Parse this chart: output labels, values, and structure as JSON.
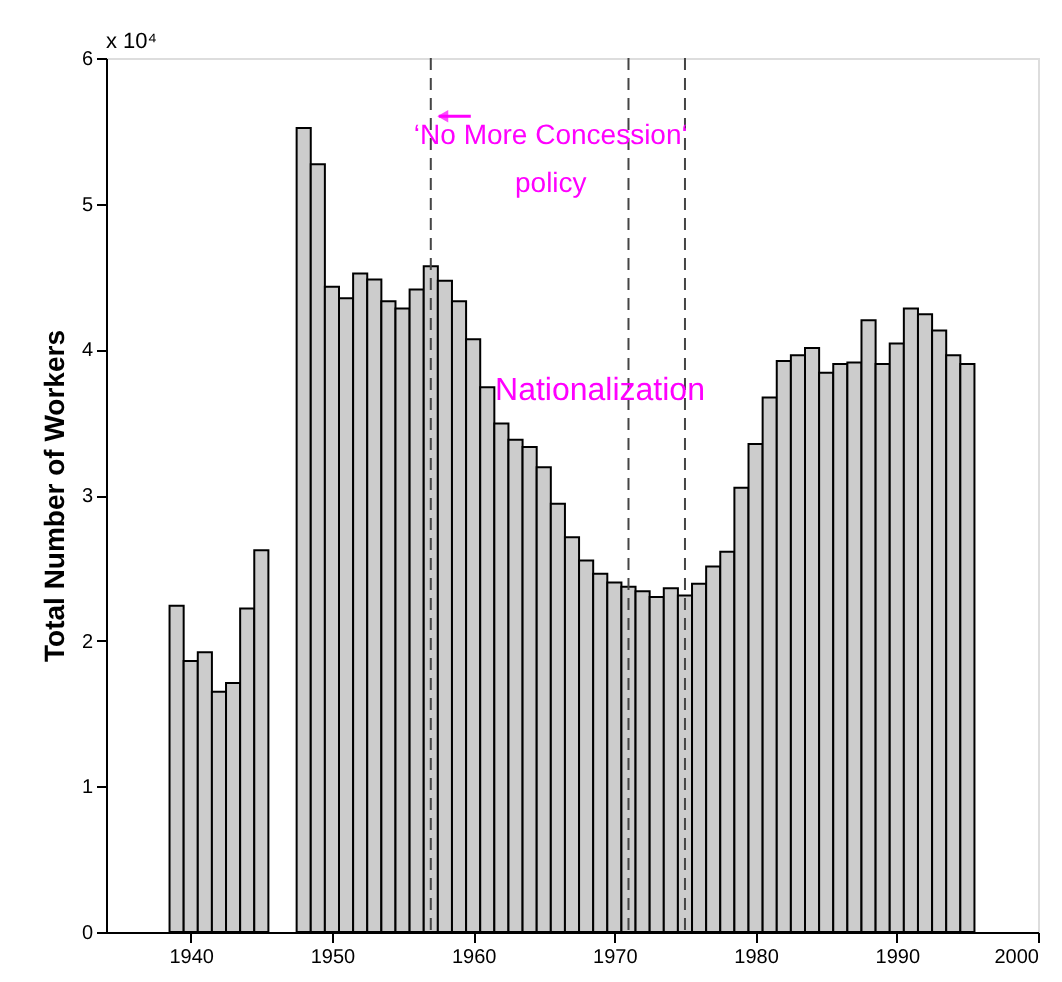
{
  "chart_data": {
    "type": "bar",
    "ylabel": "Total Number of Workers",
    "x": [
      1939,
      1940,
      1941,
      1942,
      1943,
      1944,
      1945,
      1946,
      1947,
      1948,
      1949,
      1950,
      1951,
      1952,
      1953,
      1954,
      1955,
      1956,
      1957,
      1958,
      1959,
      1960,
      1961,
      1962,
      1963,
      1964,
      1965,
      1966,
      1967,
      1968,
      1969,
      1970,
      1971,
      1972,
      1973,
      1974,
      1975,
      1976,
      1977,
      1978,
      1979,
      1980,
      1981,
      1982,
      1983,
      1984,
      1985,
      1986,
      1987,
      1988,
      1989,
      1990,
      1991,
      1992,
      1993,
      1994,
      1995
    ],
    "values": [
      2.24,
      1.86,
      1.92,
      1.65,
      1.71,
      2.22,
      2.62,
      null,
      null,
      5.52,
      5.27,
      4.43,
      4.35,
      4.52,
      4.48,
      4.33,
      4.28,
      4.41,
      4.57,
      4.47,
      4.33,
      4.07,
      3.74,
      3.49,
      3.38,
      3.33,
      3.19,
      2.94,
      2.71,
      2.55,
      2.46,
      2.4,
      2.37,
      2.34,
      2.3,
      2.36,
      2.31,
      2.39,
      2.51,
      2.61,
      3.05,
      3.35,
      3.67,
      3.92,
      3.96,
      4.01,
      3.84,
      3.9,
      3.91,
      4.2,
      3.9,
      4.04,
      4.28,
      4.24,
      4.13,
      3.96,
      3.9
    ],
    "color": "#cccccc",
    "xlim": [
      1934,
      2000
    ],
    "xticks": [
      1940,
      1950,
      1960,
      1970,
      1980,
      1990,
      2000
    ],
    "ylim": [
      0,
      6
    ],
    "yticks": [
      0,
      1,
      2,
      3,
      4,
      5,
      6
    ],
    "grid": false,
    "ref_lines": [
      {
        "axis": "x",
        "value": 1957,
        "line_style": "dashed",
        "color": "#444444"
      },
      {
        "axis": "x",
        "value": 1971,
        "line_style": "dashed",
        "color": "#444444"
      },
      {
        "axis": "x",
        "value": 1975,
        "line_style": "dashed",
        "color": "#444444"
      }
    ],
    "annotations": [
      "x 10⁴",
      {
        "text": "‘No More Concession‘\npolicy",
        "x": 1957,
        "y": 5.6
      },
      "Nationalization"
    ]
  }
}
